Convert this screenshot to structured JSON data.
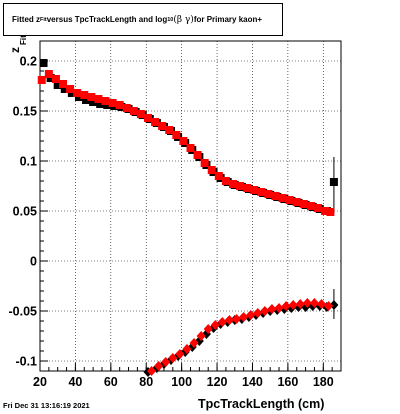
{
  "title": {
    "prefix": "Fitted  z",
    "subscript": "Fit",
    "middle": "  versus TpcTrackLength and log",
    "log_base": "10",
    "beta_gamma": "(β  γ)",
    "suffix": " for Primary kaon+"
  },
  "footer": "Fri Dec 31 13:16:19 2021",
  "chart_data": {
    "type": "scatter",
    "xlabel": "TpcTrackLength (cm)",
    "ylabel": "z",
    "ylabel_sub": "Fit",
    "xlim": [
      20,
      190
    ],
    "ylim": [
      -0.11,
      0.22
    ],
    "x_ticks": [
      20,
      40,
      60,
      80,
      100,
      120,
      140,
      160,
      180
    ],
    "y_ticks": [
      -0.1,
      -0.05,
      0,
      0.05,
      0.1,
      0.15,
      0.2
    ],
    "y_tick_labels": [
      "-0.1",
      "-0.05",
      "0",
      "0.05",
      "0.1",
      "0.15",
      "0.2"
    ],
    "grid": true,
    "colors": {
      "black_series": "#000000",
      "red_series": "#ff0000"
    },
    "series": [
      {
        "color": "#000000",
        "marker": "square",
        "points": [
          [
            22,
            0.198
          ],
          [
            26,
            0.183
          ],
          [
            30,
            0.176
          ],
          [
            34,
            0.172
          ],
          [
            38,
            0.168
          ],
          [
            42,
            0.164
          ],
          [
            46,
            0.161
          ],
          [
            50,
            0.159
          ],
          [
            54,
            0.157
          ],
          [
            58,
            0.156
          ],
          [
            62,
            0.155
          ],
          [
            66,
            0.154
          ],
          [
            70,
            0.152
          ],
          [
            74,
            0.149
          ],
          [
            78,
            0.146
          ],
          [
            82,
            0.142
          ],
          [
            86,
            0.138
          ],
          [
            90,
            0.134
          ],
          [
            94,
            0.13
          ],
          [
            98,
            0.124
          ],
          [
            102,
            0.118
          ],
          [
            106,
            0.111
          ],
          [
            110,
            0.104
          ],
          [
            114,
            0.096
          ],
          [
            118,
            0.089
          ],
          [
            122,
            0.083
          ],
          [
            126,
            0.079
          ],
          [
            130,
            0.076
          ],
          [
            134,
            0.074
          ],
          [
            138,
            0.072
          ],
          [
            142,
            0.07
          ],
          [
            146,
            0.068
          ],
          [
            150,
            0.066
          ],
          [
            154,
            0.064
          ],
          [
            158,
            0.062
          ],
          [
            162,
            0.06
          ],
          [
            166,
            0.058
          ],
          [
            170,
            0.056
          ],
          [
            174,
            0.054
          ],
          [
            178,
            0.052
          ],
          [
            182,
            0.05
          ],
          [
            186,
            0.079
          ]
        ]
      },
      {
        "color": "#ff0000",
        "marker": "square",
        "points": [
          [
            21,
            0.181
          ],
          [
            25,
            0.187
          ],
          [
            29,
            0.182
          ],
          [
            33,
            0.177
          ],
          [
            37,
            0.172
          ],
          [
            41,
            0.168
          ],
          [
            45,
            0.166
          ],
          [
            49,
            0.164
          ],
          [
            53,
            0.162
          ],
          [
            57,
            0.16
          ],
          [
            61,
            0.158
          ],
          [
            65,
            0.156
          ],
          [
            69,
            0.153
          ],
          [
            73,
            0.15
          ],
          [
            77,
            0.147
          ],
          [
            81,
            0.143
          ],
          [
            85,
            0.139
          ],
          [
            89,
            0.135
          ],
          [
            93,
            0.131
          ],
          [
            97,
            0.126
          ],
          [
            101,
            0.12
          ],
          [
            105,
            0.113
          ],
          [
            109,
            0.106
          ],
          [
            113,
            0.098
          ],
          [
            117,
            0.091
          ],
          [
            121,
            0.085
          ],
          [
            125,
            0.08
          ],
          [
            129,
            0.077
          ],
          [
            133,
            0.075
          ],
          [
            137,
            0.073
          ],
          [
            141,
            0.071
          ],
          [
            145,
            0.069
          ],
          [
            149,
            0.067
          ],
          [
            153,
            0.065
          ],
          [
            157,
            0.063
          ],
          [
            161,
            0.061
          ],
          [
            165,
            0.059
          ],
          [
            169,
            0.057
          ],
          [
            173,
            0.055
          ],
          [
            177,
            0.053
          ],
          [
            181,
            0.05
          ],
          [
            184,
            0.049
          ]
        ]
      },
      {
        "color": "#000000",
        "marker": "diamond",
        "points": [
          [
            81,
            -0.111
          ],
          [
            86,
            -0.107
          ],
          [
            90,
            -0.103
          ],
          [
            94,
            -0.099
          ],
          [
            98,
            -0.095
          ],
          [
            102,
            -0.091
          ],
          [
            106,
            -0.086
          ],
          [
            110,
            -0.08
          ],
          [
            114,
            -0.073
          ],
          [
            118,
            -0.067
          ],
          [
            122,
            -0.063
          ],
          [
            126,
            -0.061
          ],
          [
            130,
            -0.059
          ],
          [
            134,
            -0.058
          ],
          [
            138,
            -0.056
          ],
          [
            142,
            -0.054
          ],
          [
            146,
            -0.052
          ],
          [
            150,
            -0.05
          ],
          [
            154,
            -0.049
          ],
          [
            158,
            -0.048
          ],
          [
            162,
            -0.047
          ],
          [
            166,
            -0.046
          ],
          [
            170,
            -0.046
          ],
          [
            174,
            -0.045
          ],
          [
            178,
            -0.045
          ],
          [
            182,
            -0.046
          ],
          [
            186,
            -0.044
          ]
        ]
      },
      {
        "color": "#ff0000",
        "marker": "diamond",
        "points": [
          [
            83,
            -0.11
          ],
          [
            87,
            -0.105
          ],
          [
            91,
            -0.101
          ],
          [
            95,
            -0.097
          ],
          [
            99,
            -0.093
          ],
          [
            103,
            -0.088
          ],
          [
            107,
            -0.082
          ],
          [
            111,
            -0.075
          ],
          [
            115,
            -0.068
          ],
          [
            119,
            -0.064
          ],
          [
            123,
            -0.061
          ],
          [
            127,
            -0.059
          ],
          [
            131,
            -0.058
          ],
          [
            135,
            -0.056
          ],
          [
            139,
            -0.054
          ],
          [
            143,
            -0.052
          ],
          [
            147,
            -0.05
          ],
          [
            151,
            -0.048
          ],
          [
            155,
            -0.047
          ],
          [
            159,
            -0.045
          ],
          [
            163,
            -0.044
          ],
          [
            167,
            -0.043
          ],
          [
            171,
            -0.042
          ],
          [
            175,
            -0.042
          ],
          [
            179,
            -0.043
          ],
          [
            183,
            -0.045
          ]
        ]
      }
    ],
    "error_bars": [
      {
        "x": 186,
        "y": 0.079,
        "low": 0.048,
        "high": 0.104
      },
      {
        "x": 186,
        "y": -0.044,
        "low": -0.058,
        "high": -0.028
      }
    ]
  }
}
